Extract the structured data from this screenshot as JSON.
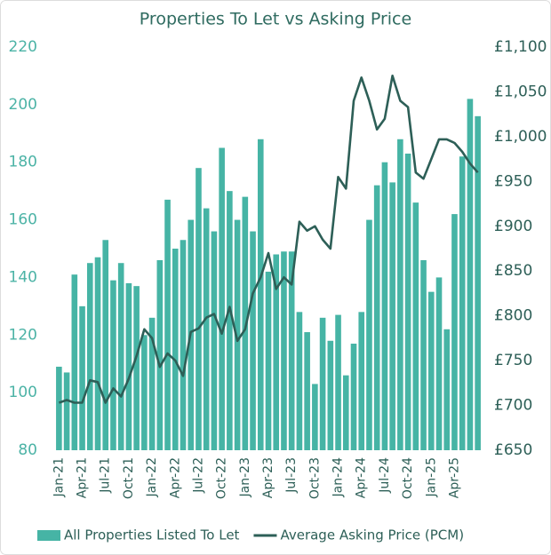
{
  "chart_data": {
    "type": "bar_line",
    "title": "Properties To Let vs Asking Price",
    "categories": [
      "Jan-21",
      null,
      null,
      "Apr-21",
      null,
      null,
      "Jul-21",
      null,
      null,
      "Oct-21",
      null,
      null,
      "Jan-22",
      null,
      null,
      "Apr-22",
      null,
      null,
      "Jul-22",
      null,
      null,
      "Oct-22",
      null,
      null,
      "Jan-23",
      null,
      null,
      "Apr-23",
      null,
      null,
      "Jul-23",
      null,
      null,
      "Oct-23",
      null,
      null,
      "Jan-24",
      null,
      null,
      "Apr-24",
      null,
      null,
      "Jul-24",
      null,
      null,
      "Oct-24",
      null,
      null,
      "Jan-25",
      null,
      null,
      "Apr-25",
      null,
      null,
      null
    ],
    "series": [
      {
        "name": "All Properties Listed To Let",
        "color": "#46b4a5",
        "type": "bar",
        "values": [
          109,
          107,
          141,
          130,
          145,
          147,
          153,
          139,
          145,
          138,
          137,
          120,
          126,
          146,
          167,
          150,
          153,
          160,
          178,
          164,
          156,
          185,
          170,
          160,
          168,
          156,
          188,
          142,
          148,
          149,
          149,
          128,
          121,
          103,
          126,
          118,
          127,
          106,
          117,
          128,
          160,
          172,
          180,
          173,
          188,
          183,
          166,
          146,
          135,
          140,
          122,
          162,
          182,
          202,
          196
        ]
      },
      {
        "name": "Average Asking Price (PCM)",
        "color": "#2d5f57",
        "type": "line",
        "axis": "y2",
        "values": [
          703,
          706,
          703,
          703,
          728,
          726,
          703,
          719,
          710,
          730,
          755,
          785,
          775,
          743,
          758,
          750,
          733,
          782,
          786,
          798,
          802,
          780,
          810,
          772,
          785,
          825,
          843,
          870,
          830,
          843,
          835,
          905,
          895,
          900,
          885,
          875,
          955,
          942,
          1040,
          1066,
          1040,
          1008,
          1020,
          1068,
          1040,
          1033,
          960,
          953,
          975,
          997,
          997,
          993,
          983,
          970,
          960
        ]
      }
    ],
    "ylim": [
      80,
      220
    ],
    "yticks": [
      80,
      100,
      120,
      140,
      160,
      180,
      200,
      220
    ],
    "y2lim": [
      650,
      1100
    ],
    "y2ticks": [
      {
        "value": 650,
        "label": "£650"
      },
      {
        "value": 700,
        "label": "£700"
      },
      {
        "value": 750,
        "label": "£750"
      },
      {
        "value": 800,
        "label": "£800"
      },
      {
        "value": 850,
        "label": "£850"
      },
      {
        "value": 900,
        "label": "£900"
      },
      {
        "value": 950,
        "label": "£950"
      },
      {
        "value": 1000,
        "label": "£1,000"
      },
      {
        "value": 1050,
        "label": "£1,050"
      },
      {
        "value": 1100,
        "label": "£1,100"
      }
    ],
    "legend": "bottom"
  }
}
